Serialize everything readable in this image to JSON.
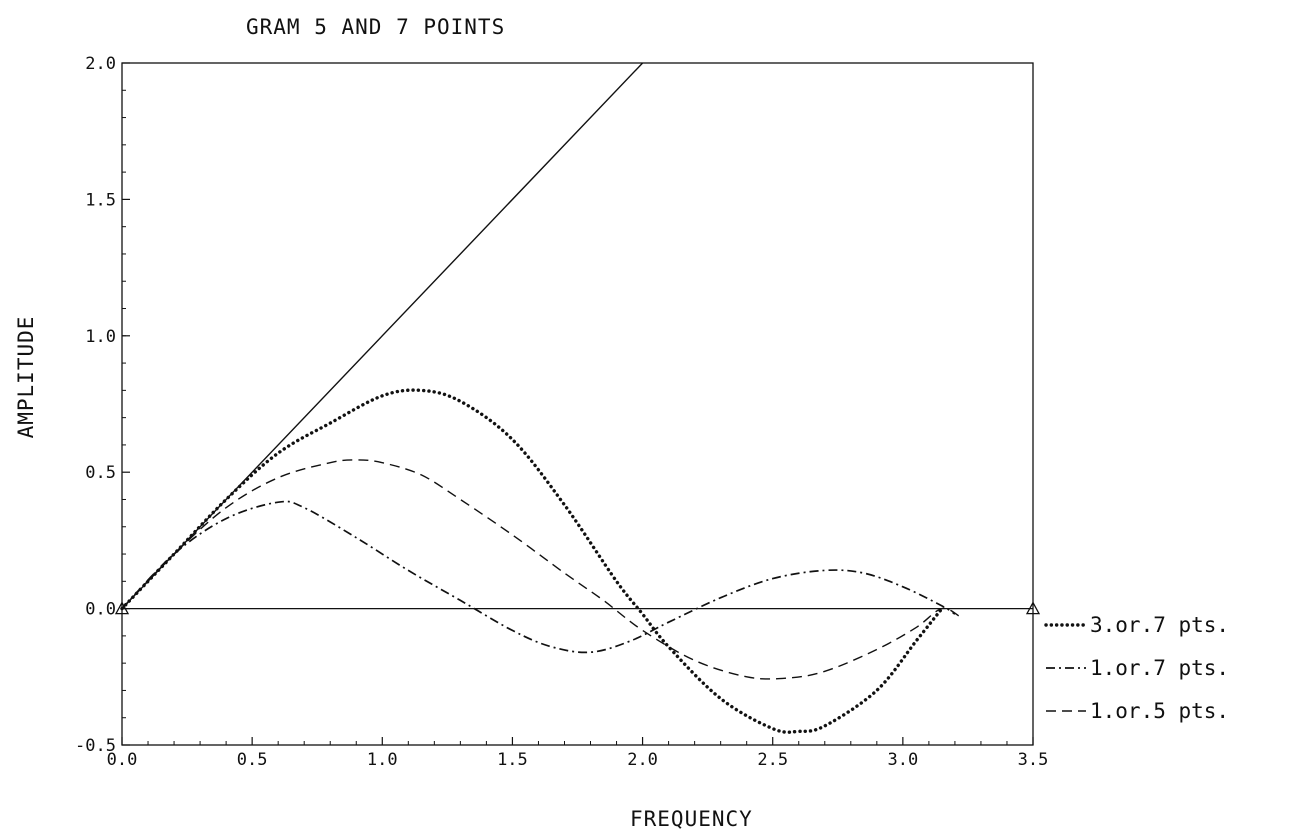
{
  "chart_data": {
    "type": "line",
    "title": "GRAM 5 AND 7 POINTS",
    "xlabel": "FREQUENCY",
    "ylabel": "AMPLITUDE",
    "xlim": [
      0.0,
      3.5
    ],
    "ylim": [
      -0.5,
      2.0
    ],
    "x_ticks": [
      "0.0",
      "0.5",
      "1.0",
      "1.5",
      "2.0",
      "2.5",
      "3.0",
      "3.5"
    ],
    "y_ticks": [
      "-0.5",
      "0.0",
      "0.5",
      "1.0",
      "1.5",
      "2.0"
    ],
    "grid": false,
    "legend_position": "right",
    "series": [
      {
        "style": "solid",
        "x": [
          0.0,
          2.0
        ],
        "y": [
          0.0,
          2.0
        ]
      },
      {
        "name": "3.or.7 pts.",
        "style": "dotted",
        "x": [
          0.0,
          0.2,
          0.4,
          0.6,
          0.8,
          1.0,
          1.15,
          1.3,
          1.5,
          1.7,
          1.9,
          2.0,
          2.1,
          2.3,
          2.5,
          2.6,
          2.7,
          2.9,
          3.05,
          3.15
        ],
        "y": [
          0.0,
          0.2,
          0.4,
          0.57,
          0.68,
          0.78,
          0.8,
          0.76,
          0.62,
          0.38,
          0.1,
          -0.02,
          -0.14,
          -0.33,
          -0.44,
          -0.45,
          -0.43,
          -0.3,
          -0.12,
          0.0
        ]
      },
      {
        "name": "1.or.7 pts.",
        "style": "dashdot",
        "x": [
          0.0,
          0.2,
          0.4,
          0.6,
          0.7,
          0.9,
          1.1,
          1.3,
          1.5,
          1.65,
          1.8,
          1.95,
          2.1,
          2.3,
          2.5,
          2.7,
          2.85,
          3.0,
          3.15,
          3.2
        ],
        "y": [
          0.0,
          0.2,
          0.33,
          0.39,
          0.37,
          0.26,
          0.14,
          0.03,
          -0.08,
          -0.14,
          -0.16,
          -0.12,
          -0.05,
          0.04,
          0.11,
          0.14,
          0.13,
          0.08,
          0.01,
          -0.02
        ]
      },
      {
        "name": "1.or.5 pts.",
        "style": "dashed",
        "x": [
          0.0,
          0.2,
          0.4,
          0.6,
          0.8,
          0.9,
          1.0,
          1.15,
          1.3,
          1.5,
          1.7,
          1.85,
          2.0,
          2.2,
          2.4,
          2.55,
          2.7,
          2.9,
          3.05,
          3.15,
          3.22
        ],
        "y": [
          0.0,
          0.2,
          0.37,
          0.48,
          0.535,
          0.545,
          0.535,
          0.49,
          0.4,
          0.27,
          0.13,
          0.03,
          -0.08,
          -0.19,
          -0.25,
          -0.255,
          -0.23,
          -0.15,
          -0.07,
          0.0,
          -0.03
        ]
      }
    ],
    "markers": {
      "style": "triangle",
      "points": [
        {
          "x": 0.0,
          "y": 0.0
        },
        {
          "x": 3.5,
          "y": 0.0
        }
      ]
    }
  }
}
